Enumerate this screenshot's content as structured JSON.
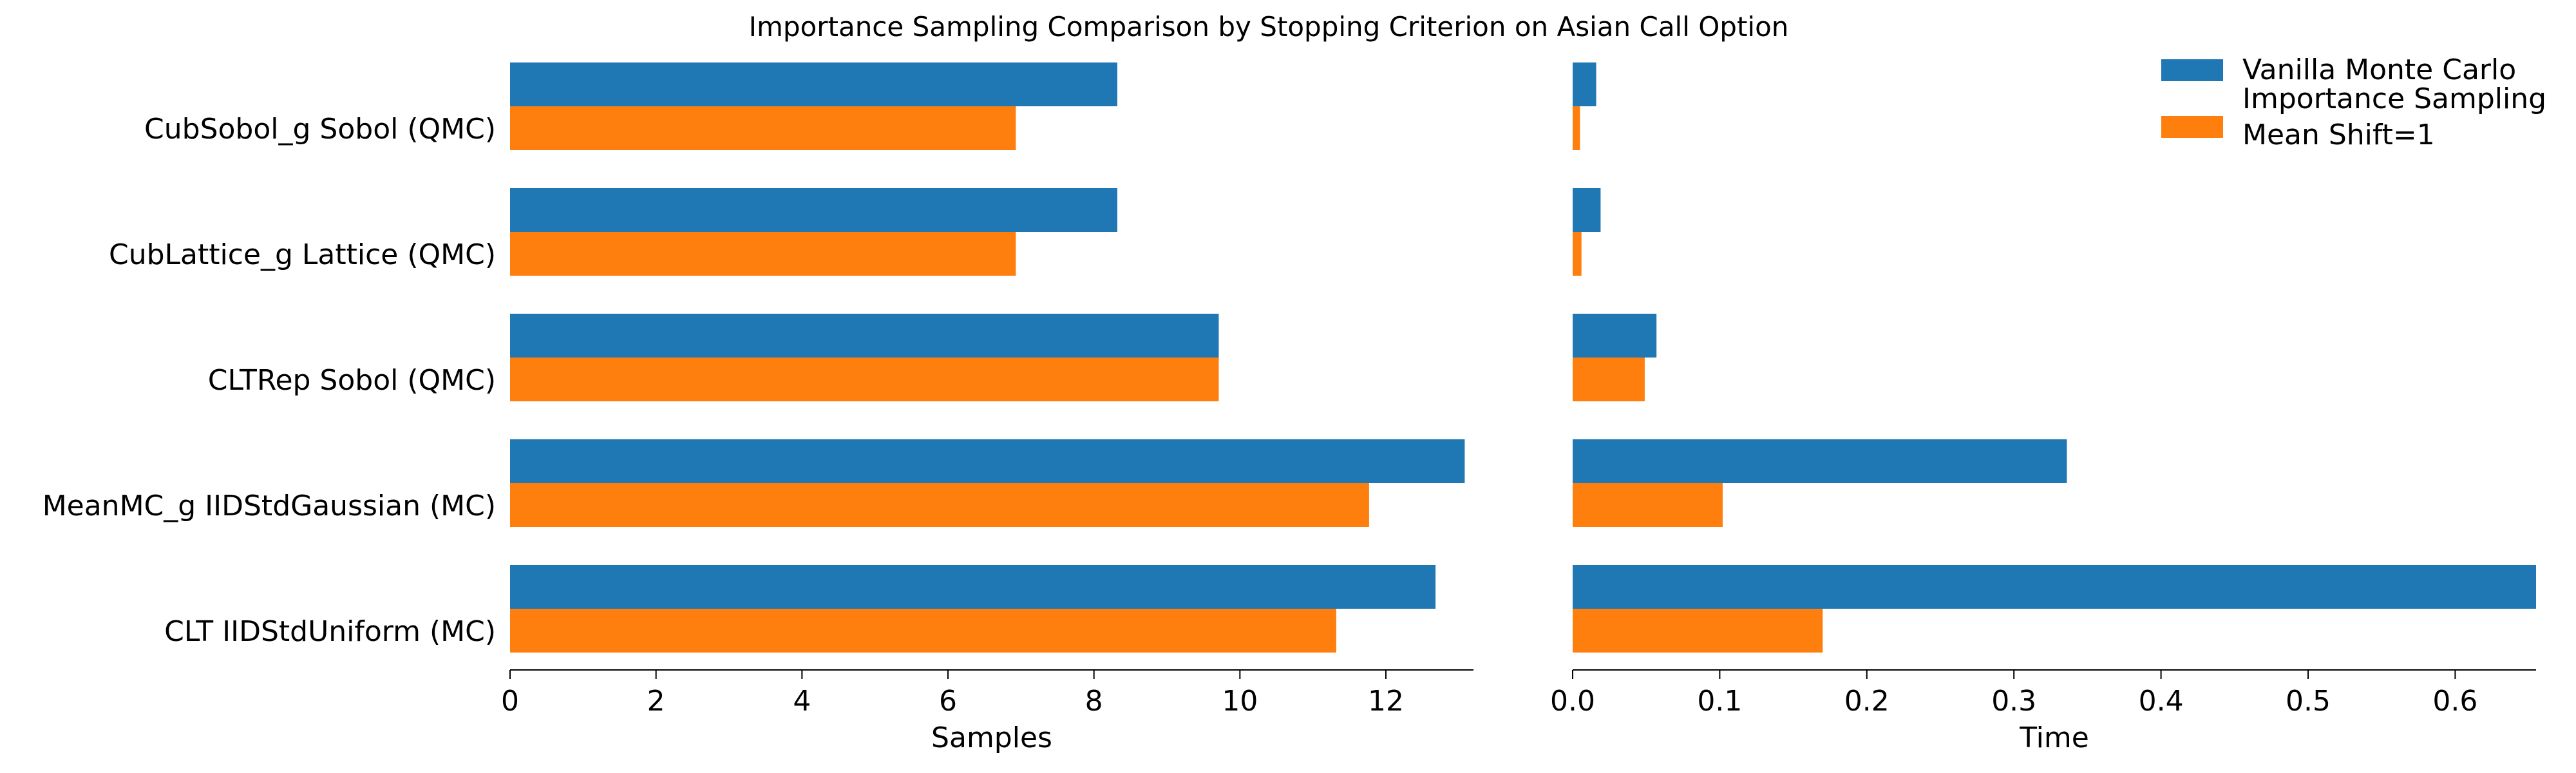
{
  "chart_data": {
    "type": "bar",
    "orientation": "horizontal",
    "title": "Importance Sampling Comparison by Stopping Criterion on Asian Call Option",
    "categories": [
      "CubSobol_g Sobol (QMC)",
      "CubLattice_g Lattice (QMC)",
      "CLTRep Sobol (QMC)",
      "MeanMC_g IIDStdGaussian (MC)",
      "CLT IIDStdUniform (MC)"
    ],
    "legend": {
      "placement": "top-right",
      "entries": [
        "Vanilla Monte Carlo",
        "Importance Sampling\nMean Shift=1"
      ]
    },
    "panels": [
      {
        "xlabel": "Samples",
        "xlim": [
          0,
          13.2
        ],
        "xticks": [
          0,
          2,
          4,
          6,
          8,
          10,
          12
        ],
        "xtick_labels": [
          "0",
          "2",
          "4",
          "6",
          "8",
          "10",
          "12"
        ],
        "series": [
          {
            "name": "Vanilla Monte Carlo",
            "color": "#1f77b4",
            "values": [
              8.32,
              8.32,
              9.71,
              13.08,
              12.68
            ]
          },
          {
            "name": "Importance Sampling Mean Shift=1",
            "color": "#ff7f0e",
            "values": [
              6.93,
              6.93,
              9.71,
              11.77,
              11.32
            ]
          }
        ]
      },
      {
        "xlabel": "Time",
        "xlim": [
          0,
          0.655
        ],
        "xticks": [
          0.0,
          0.1,
          0.2,
          0.3,
          0.4,
          0.5,
          0.6
        ],
        "xtick_labels": [
          "0.0",
          "0.1",
          "0.2",
          "0.3",
          "0.4",
          "0.5",
          "0.6"
        ],
        "series": [
          {
            "name": "Vanilla Monte Carlo",
            "color": "#1f77b4",
            "values": [
              0.016,
              0.019,
              0.057,
              0.336,
              0.655
            ]
          },
          {
            "name": "Importance Sampling Mean Shift=1",
            "color": "#ff7f0e",
            "values": [
              0.005,
              0.006,
              0.049,
              0.102,
              0.17
            ]
          }
        ]
      }
    ],
    "grid": false
  }
}
